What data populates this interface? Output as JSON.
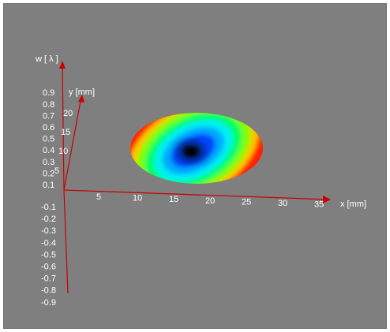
{
  "chart_data": {
    "type": "surface",
    "colormap": [
      "#000000",
      "#0050ff",
      "#00e0ff",
      "#00ff40",
      "#ffff00",
      "#ff2000"
    ],
    "axis_color": "#cc0000",
    "background": "#7f7f7f",
    "x_axis": {
      "label": "x [mm]",
      "ticks": [
        "5",
        "10",
        "15",
        "20",
        "25",
        "30",
        "35"
      ]
    },
    "y_axis": {
      "label": "y [mm]",
      "ticks": [
        "5",
        "10",
        "15",
        "20"
      ]
    },
    "w_axis": {
      "label": "w  [ λ ]",
      "ticks_pos": [
        "0.1",
        "0.2",
        "0.3",
        "0.4",
        "0.5",
        "0.6",
        "0.7",
        "0.8",
        "0.9"
      ],
      "ticks_neg": [
        "-0.1",
        "-0.2",
        "-0.3",
        "-0.4",
        "-0.5",
        "-0.6",
        "-0.7",
        "-0.8",
        "-0.9"
      ]
    },
    "surface": {
      "shape": "ellipse",
      "minimum_color": "black",
      "edge_color": "red"
    }
  }
}
